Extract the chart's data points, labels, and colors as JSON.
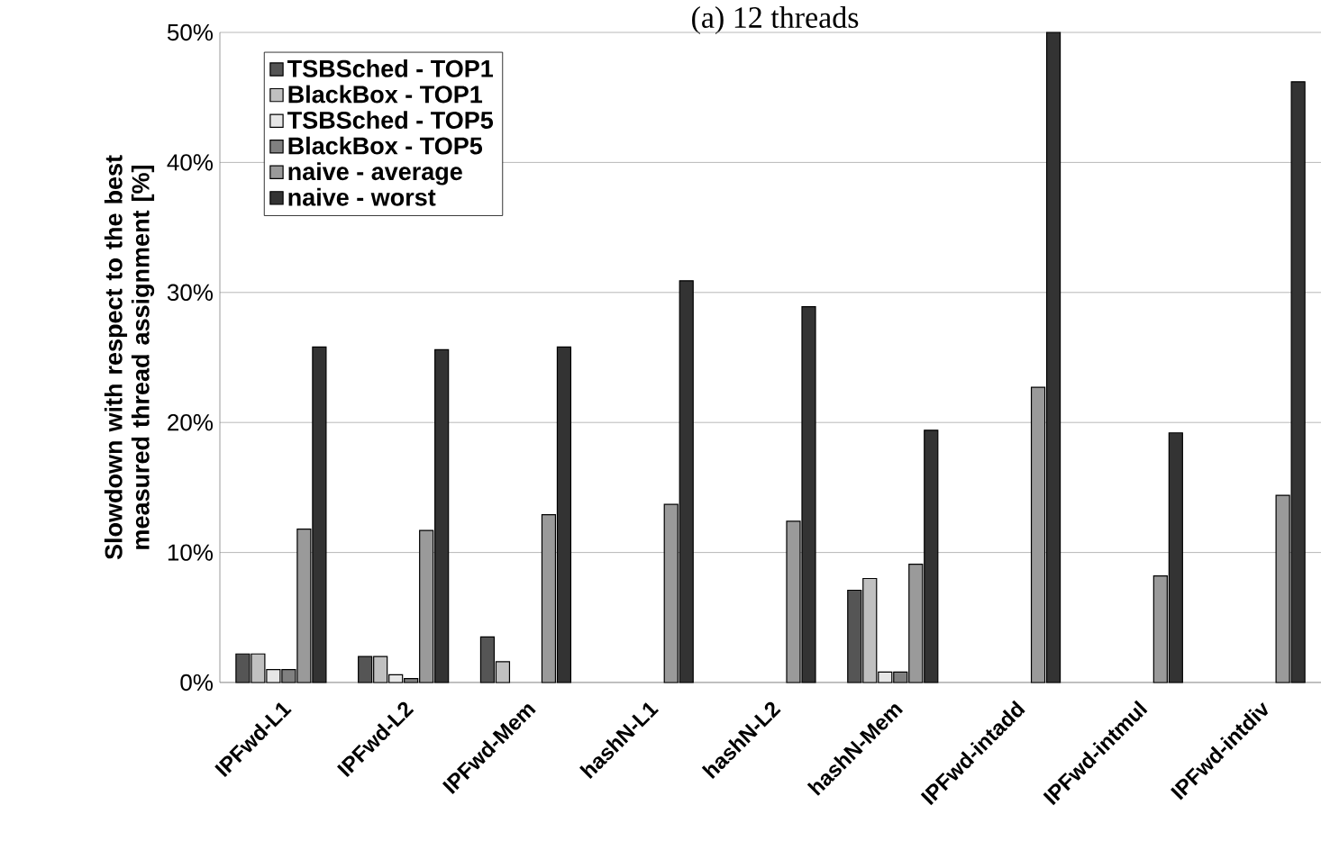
{
  "chart_data": {
    "type": "bar",
    "title": "(a) 12 threads",
    "ylabel": "Slowdown with respect to the best measured thread assignment [%]",
    "categories": [
      "IPFwd-L1",
      "IPFwd-L2",
      "IPFwd-Mem",
      "hashN-L1",
      "hashN-L2",
      "hashN-Mem",
      "IPFwd-intadd",
      "IPFwd-intmul",
      "IPFwd-intdiv"
    ],
    "series": [
      {
        "name": "TSBSched - TOP1",
        "color": "#555555",
        "values": [
          2.2,
          2.0,
          3.5,
          null,
          null,
          7.1,
          null,
          null,
          null
        ]
      },
      {
        "name": "BlackBox - TOP1",
        "color": "#c0c0c0",
        "values": [
          2.2,
          2.0,
          1.6,
          null,
          null,
          8.0,
          null,
          null,
          null
        ]
      },
      {
        "name": "TSBSched - TOP5",
        "color": "#e6e6e6",
        "values": [
          1.0,
          0.6,
          null,
          null,
          null,
          0.8,
          null,
          null,
          null
        ]
      },
      {
        "name": "BlackBox - TOP5",
        "color": "#808080",
        "values": [
          1.0,
          0.3,
          null,
          null,
          null,
          0.8,
          null,
          null,
          null
        ]
      },
      {
        "name": "naive - average",
        "color": "#9a9a9a",
        "values": [
          11.8,
          11.7,
          12.9,
          13.7,
          12.4,
          9.1,
          22.7,
          8.2,
          14.4
        ]
      },
      {
        "name": "naive - worst",
        "color": "#333333",
        "values": [
          25.8,
          25.6,
          25.8,
          30.9,
          28.9,
          19.4,
          50.0,
          19.2,
          46.2
        ]
      }
    ],
    "ylim": [
      0,
      50
    ],
    "yticks": [
      {
        "value": 0,
        "label": "0%"
      },
      {
        "value": 10,
        "label": "10%"
      },
      {
        "value": 20,
        "label": "20%"
      },
      {
        "value": 30,
        "label": "30%"
      },
      {
        "value": 40,
        "label": "40%"
      },
      {
        "value": 50,
        "label": "50%"
      }
    ],
    "grid": "y",
    "legend": "top left"
  }
}
